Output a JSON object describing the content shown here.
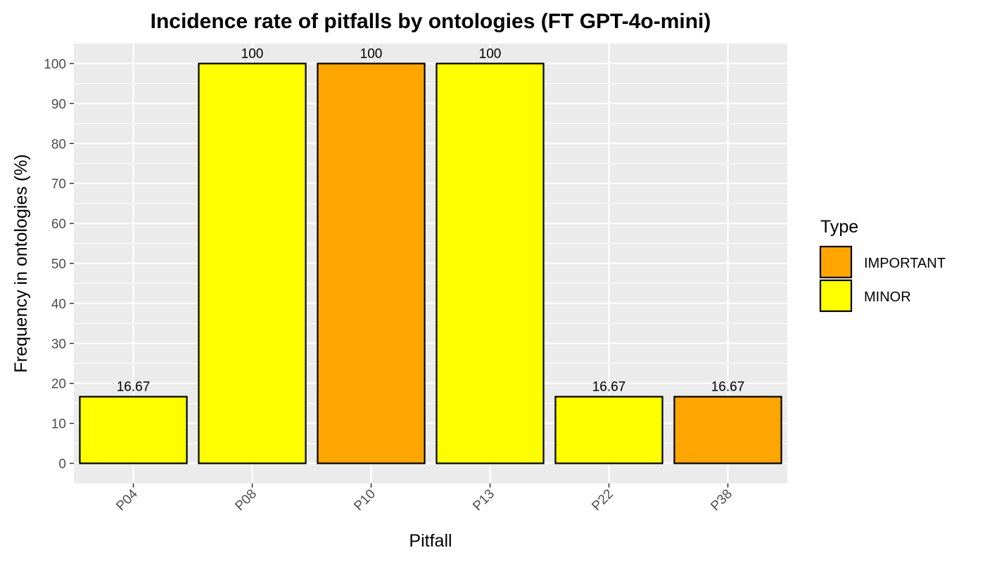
{
  "chart_data": {
    "type": "bar",
    "title": "Incidence rate of pitfalls by ontologies (FT GPT-4o-mini)",
    "xlabel": "Pitfall",
    "ylabel": "Frequency in ontologies (%)",
    "categories": [
      "P04",
      "P08",
      "P10",
      "P13",
      "P22",
      "P38"
    ],
    "values": [
      16.67,
      100,
      100,
      100,
      16.67,
      16.67
    ],
    "value_labels": [
      "16.67",
      "100",
      "100",
      "100",
      "16.67",
      "16.67"
    ],
    "types": [
      "MINOR",
      "MINOR",
      "IMPORTANT",
      "MINOR",
      "MINOR",
      "IMPORTANT"
    ],
    "ylim": [
      -5,
      105
    ],
    "yticks": [
      0,
      10,
      20,
      30,
      40,
      50,
      60,
      70,
      80,
      90,
      100
    ],
    "grid": true,
    "legend": {
      "title": "Type",
      "position": "right",
      "entries": [
        {
          "label": "IMPORTANT",
          "color": "#FFA500"
        },
        {
          "label": "MINOR",
          "color": "#FFFF00"
        }
      ]
    },
    "colors": {
      "IMPORTANT": "#FFA500",
      "MINOR": "#FFFF00",
      "panel_background": "#EBEBEB",
      "grid": "#FFFFFF",
      "bar_outline": "#000000"
    }
  }
}
